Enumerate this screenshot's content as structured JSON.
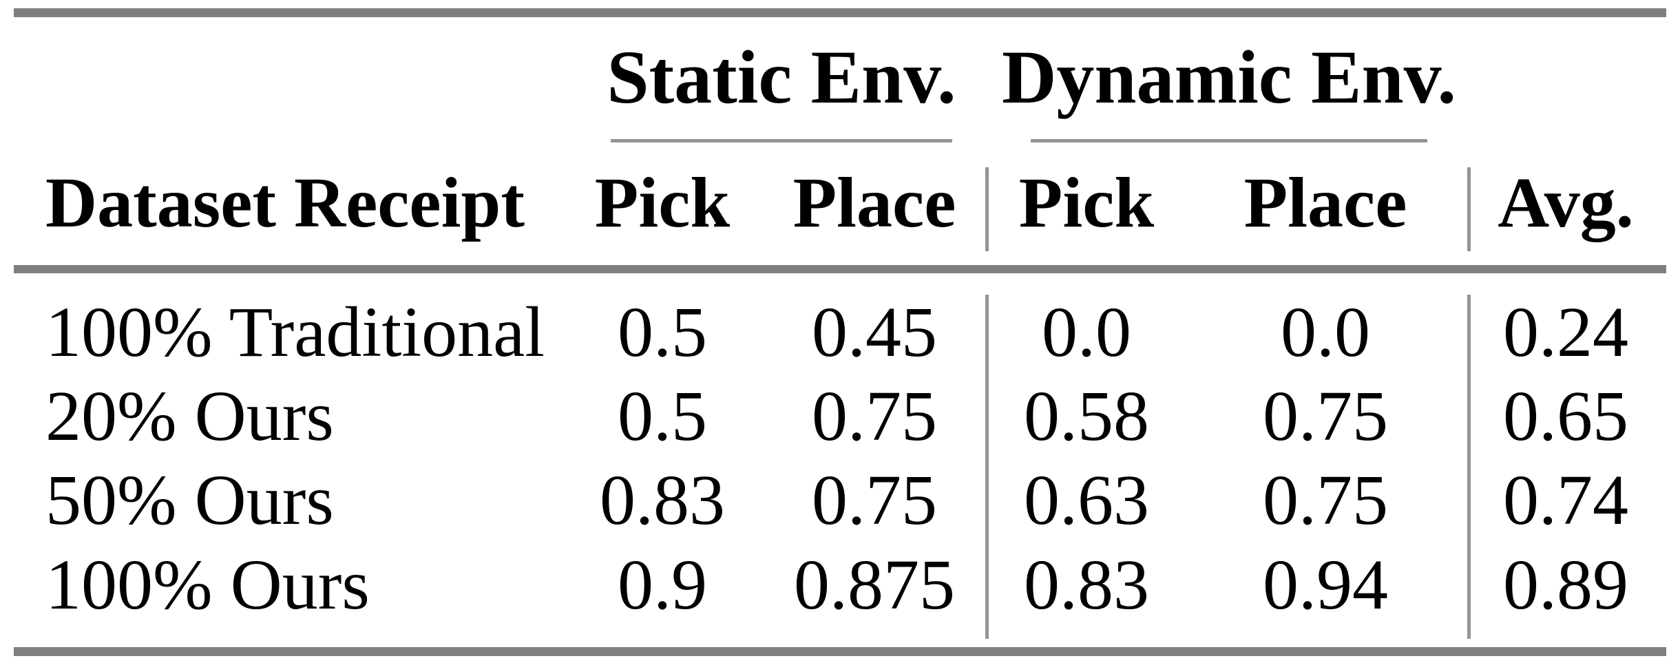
{
  "table": {
    "group_headers": {
      "static": "Static Env.",
      "dynamic": "Dynamic Env."
    },
    "columns": {
      "dataset": "Dataset Receipt",
      "pick_static": "Pick",
      "place_static": "Place",
      "pick_dynamic": "Pick",
      "place_dynamic": "Place",
      "avg": "Avg."
    },
    "rows": [
      {
        "dataset": "100% Traditional",
        "pick_static": "0.5",
        "place_static": "0.45",
        "pick_dynamic": "0.0",
        "place_dynamic": "0.0",
        "avg": "0.24"
      },
      {
        "dataset": "20% Ours",
        "pick_static": "0.5",
        "place_static": "0.75",
        "pick_dynamic": "0.58",
        "place_dynamic": "0.75",
        "avg": "0.65"
      },
      {
        "dataset": "50% Ours",
        "pick_static": "0.83",
        "place_static": "0.75",
        "pick_dynamic": "0.63",
        "place_dynamic": "0.75",
        "avg": "0.74"
      },
      {
        "dataset": "100% Ours",
        "pick_static": "0.9",
        "place_static": "0.875",
        "pick_dynamic": "0.83",
        "place_dynamic": "0.94",
        "avg": "0.89"
      }
    ]
  },
  "colors": {
    "rule_thick": "#7f7f7f",
    "rule_thin": "#949494",
    "text": "#000000",
    "background": "#ffffff"
  }
}
